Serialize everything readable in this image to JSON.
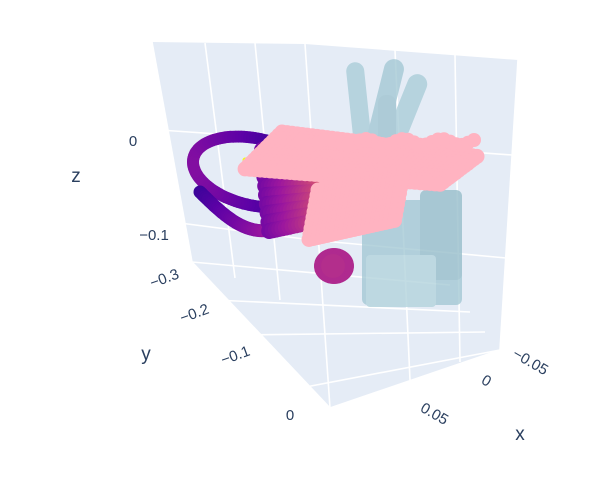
{
  "chart_data": {
    "type": "scatter3d",
    "scene": {
      "background_color": "#e5ecf6",
      "grid_color": "#ffffff",
      "axis_text_color": "#2a3f5f"
    },
    "axes": {
      "x": {
        "label": "x",
        "ticks": [
          "0.05",
          "0",
          "−0.05"
        ],
        "range": [
          0.09,
          -0.06
        ]
      },
      "y": {
        "label": "y",
        "ticks": [
          "0",
          "−0.1",
          "−0.2",
          "−0.3"
        ],
        "range": [
          0.05,
          -0.32
        ]
      },
      "z": {
        "label": "z",
        "ticks": [
          "0",
          "−0.1"
        ],
        "range": [
          -0.17,
          0.03
        ]
      }
    },
    "series": [
      {
        "kind": "point-cloud",
        "colorscale": [
          "#0d0887",
          "#5c01a6",
          "#9c179e",
          "#cc4778",
          "#ed7953"
        ],
        "highlight_color": "#f0f921",
        "description": "object"
      },
      {
        "kind": "point-cloud",
        "color": "#ffb3c1",
        "description": "object-top"
      },
      {
        "kind": "mesh",
        "color": "#a3cbd6",
        "opacity": 0.75,
        "description": "hand"
      }
    ]
  }
}
